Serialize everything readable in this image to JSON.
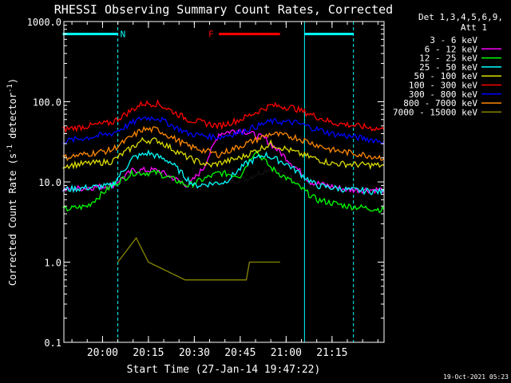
{
  "chart_data": {
    "type": "line",
    "title": "RHESSI Observing Summary Count Rates, Corrected",
    "xlabel": "Start Time (27-Jan-14 19:47:22)",
    "ylabel_main": "Corrected Count Rate (s",
    "ylabel_sup1": "-1",
    "ylabel_mid": " detector",
    "ylabel_sup2": "-1",
    "ylabel_end": ")",
    "y_scale": "log",
    "ylim": [
      0.1,
      1000
    ],
    "xlim": [
      "19:47:22",
      "21:32:00"
    ],
    "grid": false,
    "y_ticks": [
      {
        "v": 1000,
        "label": "1000.0"
      },
      {
        "v": 100,
        "label": "100.0"
      },
      {
        "v": 10,
        "label": "10.0"
      },
      {
        "v": 1,
        "label": "1.0"
      },
      {
        "v": 0.1,
        "label": "0.1"
      }
    ],
    "x_ticks": [
      {
        "t": "20:00",
        "label": "20:00"
      },
      {
        "t": "20:15",
        "label": "20:15"
      },
      {
        "t": "20:30",
        "label": "20:30"
      },
      {
        "t": "20:45",
        "label": "20:45"
      },
      {
        "t": "21:00",
        "label": "21:00"
      },
      {
        "t": "21:15",
        "label": "21:15"
      }
    ],
    "legend_header": [
      "Det 1,3,4,5,6,9,",
      "Att 1"
    ],
    "legend_placement": "right",
    "series": [
      {
        "name": "3 - 6 keV",
        "color": "#000000",
        "points": [
          [
            "19:47",
            "8"
          ],
          [
            "20:03",
            "8.5"
          ],
          [
            "20:10",
            "13"
          ],
          [
            "20:18",
            "13"
          ],
          [
            "20:30",
            "8.5"
          ],
          [
            "20:40",
            "10"
          ],
          [
            "20:47",
            "11"
          ],
          [
            "20:55",
            "15"
          ],
          [
            "21:05",
            "10"
          ],
          [
            "21:20",
            "8"
          ],
          [
            "21:32",
            "8"
          ]
        ]
      },
      {
        "name": "6 - 12 keV",
        "color": "#ff00ff",
        "points": [
          [
            "19:47",
            "8"
          ],
          [
            "20:03",
            "9"
          ],
          [
            "20:10",
            "14"
          ],
          [
            "20:18",
            "14"
          ],
          [
            "20:28",
            "9"
          ],
          [
            "20:33",
            "15"
          ],
          [
            "20:38",
            "40"
          ],
          [
            "20:45",
            "45"
          ],
          [
            "20:53",
            "35"
          ],
          [
            "21:00",
            "20"
          ],
          [
            "21:08",
            "10"
          ],
          [
            "21:20",
            "8"
          ],
          [
            "21:32",
            "8"
          ]
        ]
      },
      {
        "name": "12 - 25 keV",
        "color": "#00ff00",
        "points": [
          [
            "19:47",
            "4.5"
          ],
          [
            "19:55",
            "5"
          ],
          [
            "20:03",
            "9"
          ],
          [
            "20:10",
            "13"
          ],
          [
            "20:18",
            "13"
          ],
          [
            "20:28",
            "9"
          ],
          [
            "20:38",
            "13"
          ],
          [
            "20:45",
            "12"
          ],
          [
            "20:50",
            "25"
          ],
          [
            "20:55",
            "15"
          ],
          [
            "21:02",
            "10"
          ],
          [
            "21:10",
            "6"
          ],
          [
            "21:20",
            "5"
          ],
          [
            "21:32",
            "4.5"
          ]
        ]
      },
      {
        "name": "25 - 50 keV",
        "color": "#00ffff",
        "points": [
          [
            "19:47",
            "8"
          ],
          [
            "20:03",
            "9"
          ],
          [
            "20:10",
            "20"
          ],
          [
            "20:15",
            "23"
          ],
          [
            "20:22",
            "18"
          ],
          [
            "20:30",
            "9"
          ],
          [
            "20:40",
            "10"
          ],
          [
            "20:47",
            "17"
          ],
          [
            "20:53",
            "22"
          ],
          [
            "21:00",
            "17"
          ],
          [
            "21:10",
            "9"
          ],
          [
            "21:20",
            "8"
          ],
          [
            "21:32",
            "7.5"
          ]
        ]
      },
      {
        "name": "50 - 100 keV",
        "color": "#dddd00",
        "points": [
          [
            "19:47",
            "16"
          ],
          [
            "20:03",
            "18"
          ],
          [
            "20:13",
            "33"
          ],
          [
            "20:18",
            "33"
          ],
          [
            "20:28",
            "20"
          ],
          [
            "20:35",
            "16"
          ],
          [
            "20:45",
            "20"
          ],
          [
            "20:55",
            "30"
          ],
          [
            "21:05",
            "22"
          ],
          [
            "21:15",
            "17"
          ],
          [
            "21:32",
            "16"
          ]
        ]
      },
      {
        "name": "100 - 300 keV",
        "color": "#ff0000",
        "points": [
          [
            "19:47",
            "45"
          ],
          [
            "20:03",
            "55"
          ],
          [
            "20:13",
            "95"
          ],
          [
            "20:18",
            "95"
          ],
          [
            "20:28",
            "60"
          ],
          [
            "20:38",
            "50"
          ],
          [
            "20:45",
            "60"
          ],
          [
            "20:55",
            "90"
          ],
          [
            "21:02",
            "85"
          ],
          [
            "21:15",
            "55"
          ],
          [
            "21:32",
            "45"
          ]
        ]
      },
      {
        "name": "300 - 800 keV",
        "color": "#0000ff",
        "points": [
          [
            "19:47",
            "32"
          ],
          [
            "20:03",
            "40"
          ],
          [
            "20:13",
            "63"
          ],
          [
            "20:18",
            "63"
          ],
          [
            "20:28",
            "40"
          ],
          [
            "20:38",
            "36"
          ],
          [
            "20:45",
            "42"
          ],
          [
            "20:55",
            "57"
          ],
          [
            "21:03",
            "55"
          ],
          [
            "21:15",
            "40"
          ],
          [
            "21:32",
            "32"
          ]
        ]
      },
      {
        "name": "800 - 7000 keV",
        "color": "#ff8800",
        "points": [
          [
            "19:47",
            "20"
          ],
          [
            "20:03",
            "25"
          ],
          [
            "20:13",
            "45"
          ],
          [
            "20:18",
            "45"
          ],
          [
            "20:28",
            "28"
          ],
          [
            "20:38",
            "22"
          ],
          [
            "20:45",
            "28"
          ],
          [
            "20:55",
            "40"
          ],
          [
            "21:03",
            "36"
          ],
          [
            "21:15",
            "25"
          ],
          [
            "21:32",
            "20"
          ]
        ]
      },
      {
        "name": "7000 - 15000 keV",
        "color": "#888800",
        "points": [
          [
            "20:05",
            "1.0"
          ],
          [
            "20:11",
            "2.0"
          ],
          [
            "20:15",
            "1.0"
          ],
          [
            "20:27",
            "0.6"
          ],
          [
            "20:47",
            "0.6"
          ],
          [
            "20:48",
            "1.0"
          ],
          [
            "20:58",
            "1.0"
          ]
        ]
      }
    ],
    "annotations": {
      "night_label": "N",
      "night_intervals": [
        [
          "19:47",
          "20:05"
        ],
        [
          "21:06",
          "21:22"
        ]
      ],
      "flare_label": "F",
      "flare_interval": [
        "20:38",
        "20:58"
      ],
      "night_color": "#00ffff",
      "flare_color": "#ff0000"
    },
    "timestamp": "19-Oct-2021 05:23"
  }
}
